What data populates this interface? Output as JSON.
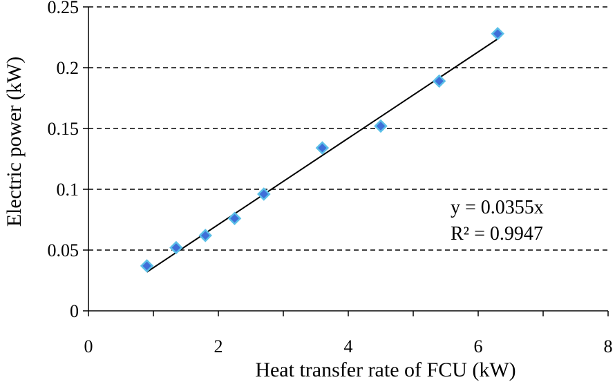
{
  "chart_data": {
    "type": "scatter",
    "title": "",
    "xlabel": "Heat transfer rate of FCU (kW)",
    "ylabel": "Electric power (kW)",
    "xlim": [
      0,
      8
    ],
    "ylim": [
      0,
      0.25
    ],
    "x_ticks": [
      0,
      2,
      4,
      6,
      8
    ],
    "x_tick_labels": [
      "0",
      "2",
      "4",
      "6",
      "8"
    ],
    "y_ticks": [
      0,
      0.05,
      0.1,
      0.15,
      0.2,
      0.25
    ],
    "y_tick_labels": [
      "0",
      "0.05",
      "0.1",
      "0.15",
      "0.2",
      "0.25"
    ],
    "grid": "horizontal dashed",
    "series": [
      {
        "marker": "diamond",
        "color": "#3f6fd8",
        "edge_color": "#5bc0e8",
        "x": [
          0.9,
          1.35,
          1.8,
          2.25,
          2.7,
          3.6,
          4.5,
          5.4,
          6.3
        ],
        "y": [
          0.037,
          0.052,
          0.062,
          0.076,
          0.096,
          0.134,
          0.152,
          0.189,
          0.228
        ]
      }
    ],
    "trendline": {
      "type": "linear",
      "slope": 0.0355,
      "x_range": [
        0.9,
        6.3
      ],
      "color": "#000000"
    },
    "annotations": [
      "y = 0.0355x",
      "R² = 0.9947"
    ]
  }
}
